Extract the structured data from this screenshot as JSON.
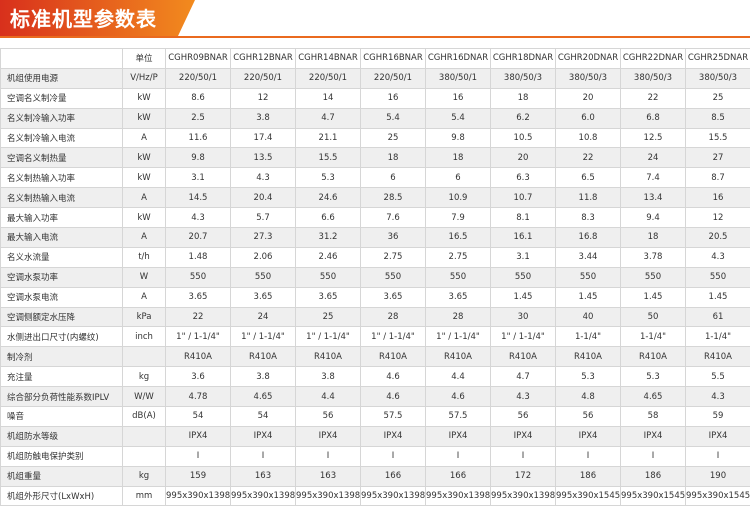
{
  "header": {
    "title": "标准机型参数表"
  },
  "table": {
    "unit_header": "单位",
    "models": [
      "CGHR09BNAR",
      "CGHR12BNAR",
      "CGHR14BNAR",
      "CGHR16BNAR",
      "CGHR16DNAR",
      "CGHR18DNAR",
      "CGHR20DNAR",
      "CGHR22DNAR",
      "CGHR25DNAR"
    ],
    "rows": [
      {
        "label": "机组使用电源",
        "unit": "V/Hz/P",
        "values": [
          "220/50/1",
          "220/50/1",
          "220/50/1",
          "220/50/1",
          "380/50/1",
          "380/50/3",
          "380/50/3",
          "380/50/3",
          "380/50/3"
        ]
      },
      {
        "label": "空调名义制冷量",
        "unit": "kW",
        "values": [
          "8.6",
          "12",
          "14",
          "16",
          "16",
          "18",
          "20",
          "22",
          "25"
        ]
      },
      {
        "label": "名义制冷输入功率",
        "unit": "kW",
        "values": [
          "2.5",
          "3.8",
          "4.7",
          "5.4",
          "5.4",
          "6.2",
          "6.0",
          "6.8",
          "8.5"
        ]
      },
      {
        "label": "名义制冷输入电流",
        "unit": "A",
        "values": [
          "11.6",
          "17.4",
          "21.1",
          "25",
          "9.8",
          "10.5",
          "10.8",
          "12.5",
          "15.5"
        ]
      },
      {
        "label": "空调名义制热量",
        "unit": "kW",
        "values": [
          "9.8",
          "13.5",
          "15.5",
          "18",
          "18",
          "20",
          "22",
          "24",
          "27"
        ]
      },
      {
        "label": "名义制热输入功率",
        "unit": "kW",
        "values": [
          "3.1",
          "4.3",
          "5.3",
          "6",
          "6",
          "6.3",
          "6.5",
          "7.4",
          "8.7"
        ]
      },
      {
        "label": "名义制热输入电流",
        "unit": "A",
        "values": [
          "14.5",
          "20.4",
          "24.6",
          "28.5",
          "10.9",
          "10.7",
          "11.8",
          "13.4",
          "16"
        ]
      },
      {
        "label": "最大输入功率",
        "unit": "kW",
        "values": [
          "4.3",
          "5.7",
          "6.6",
          "7.6",
          "7.9",
          "8.1",
          "8.3",
          "9.4",
          "12"
        ]
      },
      {
        "label": "最大输入电流",
        "unit": "A",
        "values": [
          "20.7",
          "27.3",
          "31.2",
          "36",
          "16.5",
          "16.1",
          "16.8",
          "18",
          "20.5"
        ]
      },
      {
        "label": "名义水流量",
        "unit": "t/h",
        "values": [
          "1.48",
          "2.06",
          "2.46",
          "2.75",
          "2.75",
          "3.1",
          "3.44",
          "3.78",
          "4.3"
        ]
      },
      {
        "label": "空调水泵功率",
        "unit": "W",
        "values": [
          "550",
          "550",
          "550",
          "550",
          "550",
          "550",
          "550",
          "550",
          "550"
        ]
      },
      {
        "label": "空调水泵电流",
        "unit": "A",
        "values": [
          "3.65",
          "3.65",
          "3.65",
          "3.65",
          "3.65",
          "1.45",
          "1.45",
          "1.45",
          "1.45"
        ]
      },
      {
        "label": "空调侧额定水压降",
        "unit": "kPa",
        "values": [
          "22",
          "24",
          "25",
          "28",
          "28",
          "30",
          "40",
          "50",
          "61"
        ]
      },
      {
        "label": "水侧进出口尺寸(内螺纹)",
        "unit": "inch",
        "values": [
          "1\" / 1-1/4\"",
          "1\" / 1-1/4\"",
          "1\" / 1-1/4\"",
          "1\" / 1-1/4\"",
          "1\" / 1-1/4\"",
          "1\" / 1-1/4\"",
          "1-1/4\"",
          "1-1/4\"",
          "1-1/4\""
        ]
      },
      {
        "label": "制冷剂",
        "values": [
          "R410A",
          "R410A",
          "R410A",
          "R410A",
          "R410A",
          "R410A",
          "R410A",
          "R410A",
          "R410A"
        ]
      },
      {
        "label": "充注量",
        "unit": "kg",
        "values": [
          "3.6",
          "3.8",
          "3.8",
          "4.6",
          "4.4",
          "4.7",
          "5.3",
          "5.3",
          "5.5"
        ]
      },
      {
        "label": "综合部分负荷性能系数IPLV",
        "unit": "W/W",
        "values": [
          "4.78",
          "4.65",
          "4.4",
          "4.6",
          "4.6",
          "4.3",
          "4.8",
          "4.65",
          "4.3"
        ]
      },
      {
        "label": "噪音",
        "unit": "dB(A)",
        "values": [
          "54",
          "54",
          "56",
          "57.5",
          "57.5",
          "56",
          "56",
          "58",
          "59"
        ]
      },
      {
        "label": "机组防水等级",
        "values": [
          "IPX4",
          "IPX4",
          "IPX4",
          "IPX4",
          "IPX4",
          "IPX4",
          "IPX4",
          "IPX4",
          "IPX4"
        ]
      },
      {
        "label": "机组防触电保护类别",
        "values": [
          "I",
          "I",
          "I",
          "I",
          "I",
          "I",
          "I",
          "I",
          "I"
        ]
      },
      {
        "label": "机组重量",
        "unit": "kg",
        "values": [
          "159",
          "163",
          "163",
          "166",
          "166",
          "172",
          "186",
          "186",
          "190"
        ]
      },
      {
        "label": "机组外形尺寸(LxWxH)",
        "unit": "mm",
        "values": [
          "995x390x1398",
          "995x390x1398",
          "995x390x1398",
          "995x390x1398",
          "995x390x1398",
          "995x390x1398",
          "995x390x1545",
          "995x390x1545",
          "995x390x1545"
        ]
      }
    ]
  }
}
